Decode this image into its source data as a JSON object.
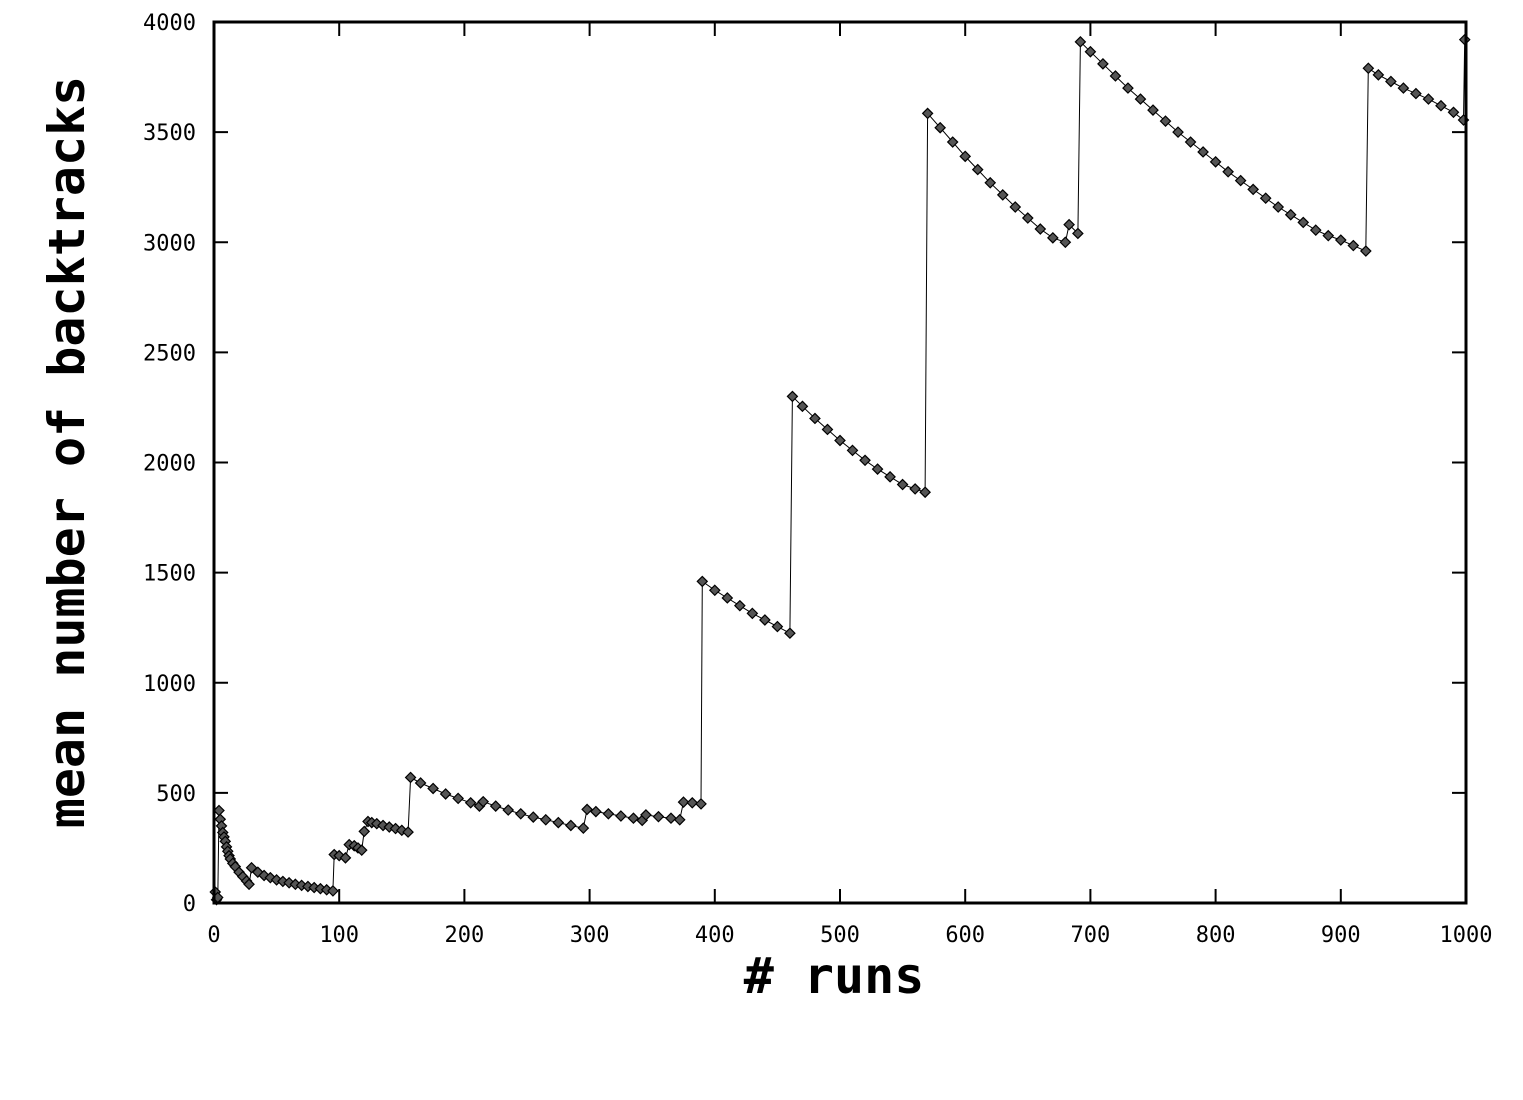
{
  "chart_data": {
    "type": "scatter",
    "title": "",
    "xlabel": "# runs",
    "ylabel": "mean number of backtracks",
    "xlim": [
      0,
      1000
    ],
    "ylim": [
      0,
      4000
    ],
    "x_ticks": [
      "0",
      "100",
      "200",
      "300",
      "400",
      "500",
      "600",
      "700",
      "800",
      "900",
      "1000"
    ],
    "y_ticks": [
      "0",
      "500",
      "1000",
      "1500",
      "2000",
      "2500",
      "3000",
      "3500",
      "4000"
    ],
    "grid": false,
    "legend": "none",
    "marker": "diamond",
    "color": "#000000",
    "series": [
      {
        "points": [
          [
            1,
            50
          ],
          [
            2,
            15
          ],
          [
            3,
            25
          ],
          [
            4,
            420
          ],
          [
            5,
            380
          ],
          [
            6,
            350
          ],
          [
            7,
            320
          ],
          [
            8,
            300
          ],
          [
            9,
            280
          ],
          [
            10,
            255
          ],
          [
            11,
            235
          ],
          [
            12,
            215
          ],
          [
            13,
            200
          ],
          [
            15,
            180
          ],
          [
            17,
            165
          ],
          [
            20,
            140
          ],
          [
            23,
            120
          ],
          [
            26,
            100
          ],
          [
            28,
            85
          ],
          [
            30,
            160
          ],
          [
            35,
            140
          ],
          [
            40,
            125
          ],
          [
            45,
            115
          ],
          [
            50,
            105
          ],
          [
            55,
            98
          ],
          [
            60,
            92
          ],
          [
            65,
            85
          ],
          [
            70,
            80
          ],
          [
            75,
            75
          ],
          [
            80,
            70
          ],
          [
            85,
            65
          ],
          [
            90,
            60
          ],
          [
            95,
            55
          ],
          [
            96,
            220
          ],
          [
            100,
            215
          ],
          [
            105,
            205
          ],
          [
            108,
            265
          ],
          [
            112,
            260
          ],
          [
            115,
            250
          ],
          [
            118,
            240
          ],
          [
            120,
            325
          ],
          [
            123,
            370
          ],
          [
            126,
            365
          ],
          [
            130,
            360
          ],
          [
            135,
            352
          ],
          [
            140,
            345
          ],
          [
            145,
            338
          ],
          [
            150,
            330
          ],
          [
            155,
            322
          ],
          [
            157,
            570
          ],
          [
            165,
            545
          ],
          [
            175,
            520
          ],
          [
            185,
            495
          ],
          [
            195,
            475
          ],
          [
            205,
            455
          ],
          [
            212,
            440
          ],
          [
            215,
            460
          ],
          [
            225,
            440
          ],
          [
            235,
            422
          ],
          [
            245,
            405
          ],
          [
            255,
            390
          ],
          [
            265,
            378
          ],
          [
            275,
            365
          ],
          [
            285,
            352
          ],
          [
            295,
            340
          ],
          [
            298,
            425
          ],
          [
            305,
            415
          ],
          [
            315,
            405
          ],
          [
            325,
            395
          ],
          [
            335,
            385
          ],
          [
            342,
            375
          ],
          [
            345,
            400
          ],
          [
            355,
            392
          ],
          [
            365,
            385
          ],
          [
            372,
            378
          ],
          [
            375,
            458
          ],
          [
            382,
            455
          ],
          [
            389,
            450
          ],
          [
            390,
            1460
          ],
          [
            400,
            1420
          ],
          [
            410,
            1385
          ],
          [
            420,
            1350
          ],
          [
            430,
            1315
          ],
          [
            440,
            1285
          ],
          [
            450,
            1255
          ],
          [
            460,
            1225
          ],
          [
            462,
            2300
          ],
          [
            470,
            2255
          ],
          [
            480,
            2200
          ],
          [
            490,
            2150
          ],
          [
            500,
            2100
          ],
          [
            510,
            2055
          ],
          [
            520,
            2010
          ],
          [
            530,
            1970
          ],
          [
            540,
            1935
          ],
          [
            550,
            1900
          ],
          [
            560,
            1880
          ],
          [
            568,
            1865
          ],
          [
            570,
            3585
          ],
          [
            580,
            3520
          ],
          [
            590,
            3455
          ],
          [
            600,
            3390
          ],
          [
            610,
            3330
          ],
          [
            620,
            3270
          ],
          [
            630,
            3215
          ],
          [
            640,
            3160
          ],
          [
            650,
            3110
          ],
          [
            660,
            3060
          ],
          [
            670,
            3020
          ],
          [
            680,
            3000
          ],
          [
            683,
            3080
          ],
          [
            690,
            3040
          ],
          [
            692,
            3910
          ],
          [
            700,
            3865
          ],
          [
            710,
            3810
          ],
          [
            720,
            3755
          ],
          [
            730,
            3700
          ],
          [
            740,
            3650
          ],
          [
            750,
            3600
          ],
          [
            760,
            3550
          ],
          [
            770,
            3500
          ],
          [
            780,
            3455
          ],
          [
            790,
            3410
          ],
          [
            800,
            3365
          ],
          [
            810,
            3320
          ],
          [
            820,
            3280
          ],
          [
            830,
            3240
          ],
          [
            840,
            3200
          ],
          [
            850,
            3160
          ],
          [
            860,
            3125
          ],
          [
            870,
            3090
          ],
          [
            880,
            3055
          ],
          [
            890,
            3030
          ],
          [
            900,
            3010
          ],
          [
            910,
            2985
          ],
          [
            920,
            2960
          ],
          [
            922,
            3790
          ],
          [
            930,
            3760
          ],
          [
            940,
            3730
          ],
          [
            950,
            3700
          ],
          [
            960,
            3675
          ],
          [
            970,
            3650
          ],
          [
            980,
            3620
          ],
          [
            990,
            3590
          ],
          [
            998,
            3555
          ],
          [
            999,
            3920
          ]
        ]
      }
    ]
  }
}
